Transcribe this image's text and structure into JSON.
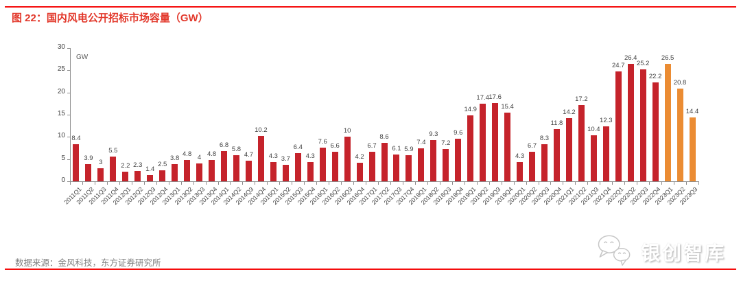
{
  "title": "图 22：国内风电公开招标市场容量（GW）",
  "source_note": "数据来源：金风科技，东方证券研究所",
  "logo": {
    "text": "银创智库",
    "icon": "wechat-chat-bubbles-icon"
  },
  "colors": {
    "rule_red": "#f50d0d",
    "title_red": "#e2382b",
    "bar_red": "#c5232b",
    "bar_orange": "#eb8c33",
    "axis_line": "#8c8c8c",
    "tick_label": "#404040",
    "value_label": "#3f3f3f",
    "unit_label": "#595959",
    "source_gray": "#7f7f7f"
  },
  "chart_data": {
    "type": "bar",
    "title": "国内风电公开招标市场容量",
    "unit": "GW",
    "xlabel": "",
    "ylabel": "GW",
    "ylim": [
      0,
      30
    ],
    "yticks": [
      0,
      5,
      10,
      15,
      20,
      25,
      30
    ],
    "grid": false,
    "legend": "none",
    "categories": [
      "2011Q1",
      "2011Q2",
      "2011Q3",
      "2011Q4",
      "2012Q1",
      "2012Q2",
      "2012Q3",
      "2012Q4",
      "2013Q1",
      "2013Q2",
      "2013Q3",
      "2013Q4",
      "2014Q1",
      "2014Q2",
      "2014Q3",
      "2014Q4",
      "2015Q1",
      "2015Q2",
      "2015Q3",
      "2015Q4",
      "2016Q1",
      "2016Q2",
      "2016Q3",
      "2016Q4",
      "2017Q1",
      "2017Q2",
      "2017Q3",
      "2017Q4",
      "2018Q1",
      "2018Q2",
      "2018Q3",
      "2018Q4",
      "2019Q1",
      "2019Q2",
      "2019Q3",
      "2019Q4",
      "2020Q1",
      "2020Q2",
      "2020Q3",
      "2020Q4",
      "2021Q1",
      "2021Q2",
      "2021Q3",
      "2021Q4",
      "2022Q1",
      "2022Q2",
      "2022Q3",
      "2022Q4",
      "2023Q1",
      "2023Q2",
      "2023Q3"
    ],
    "values": [
      8.4,
      3.9,
      3,
      5.5,
      2.2,
      2.3,
      1.4,
      2.5,
      3.8,
      4.8,
      4,
      4.8,
      6.8,
      5.8,
      4.7,
      10.2,
      4.3,
      3.7,
      6.4,
      4.3,
      7.6,
      6.6,
      10,
      4.2,
      6.7,
      8.6,
      6.1,
      5.9,
      7.4,
      9.3,
      7.2,
      9.6,
      14.9,
      17.4,
      17.6,
      15.4,
      4.3,
      6.7,
      8.3,
      11.8,
      14.2,
      17.2,
      10.4,
      12.3,
      24.7,
      26.4,
      25.2,
      22.2,
      26.5,
      20.8,
      14.4
    ],
    "orange_start_index": 48
  }
}
